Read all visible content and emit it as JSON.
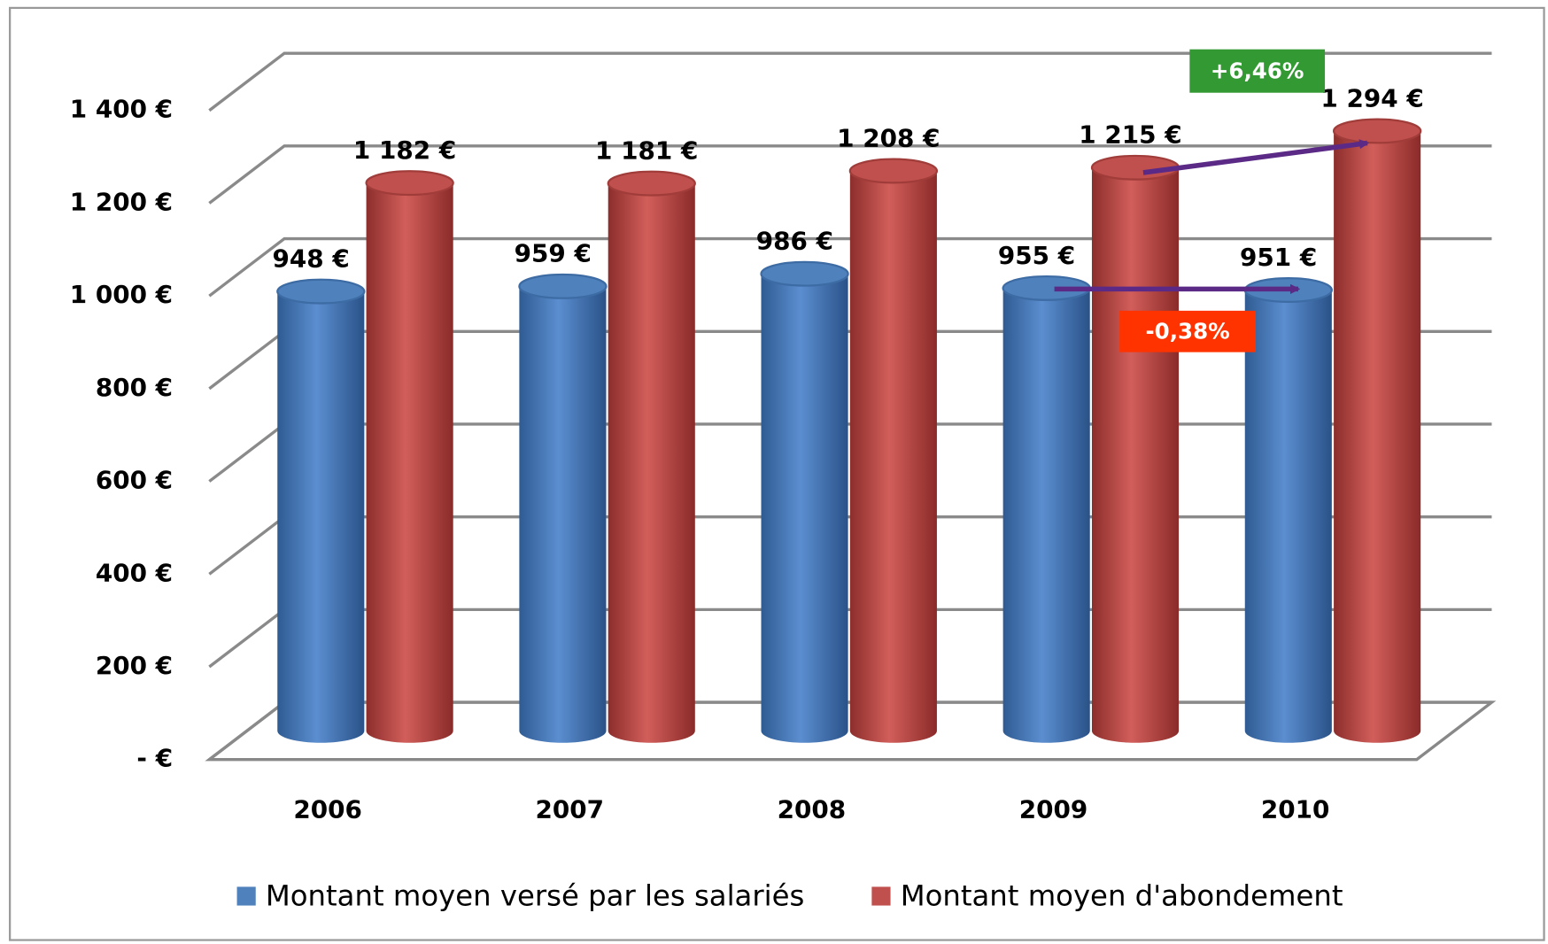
{
  "chart_data": {
    "type": "bar3d",
    "categories": [
      "2006",
      "2007",
      "2008",
      "2009",
      "2010"
    ],
    "series": [
      {
        "name": "Montant moyen versé par les salariés",
        "color": "#4f81bd",
        "values": [
          948,
          959,
          986,
          955,
          951
        ],
        "value_labels": [
          "948 €",
          "959 €",
          "986 €",
          "955 €",
          "951 €"
        ]
      },
      {
        "name": "Montant moyen d'abondement",
        "color": "#c0504d",
        "values": [
          1182,
          1181,
          1208,
          1215,
          1294
        ],
        "value_labels": [
          "1 182 €",
          "1 181 €",
          "1 208 €",
          "1 215 €",
          "1 294 €"
        ]
      }
    ],
    "ylim": [
      0,
      1400
    ],
    "yticks": [
      {
        "value": 0,
        "label": "-  €"
      },
      {
        "value": 200,
        "label": "200 €"
      },
      {
        "value": 400,
        "label": "400 €"
      },
      {
        "value": 600,
        "label": "600 €"
      },
      {
        "value": 800,
        "label": "800 €"
      },
      {
        "value": 1000,
        "label": "1 000 €"
      },
      {
        "value": 1200,
        "label": "1 200 €"
      },
      {
        "value": 1400,
        "label": "1 400 €"
      }
    ],
    "grid": true,
    "legend": "bottom",
    "annotations": [
      {
        "text": "+6,46%",
        "color": "#339933"
      },
      {
        "text": "-0,38%",
        "color": "#ff3300"
      }
    ]
  }
}
